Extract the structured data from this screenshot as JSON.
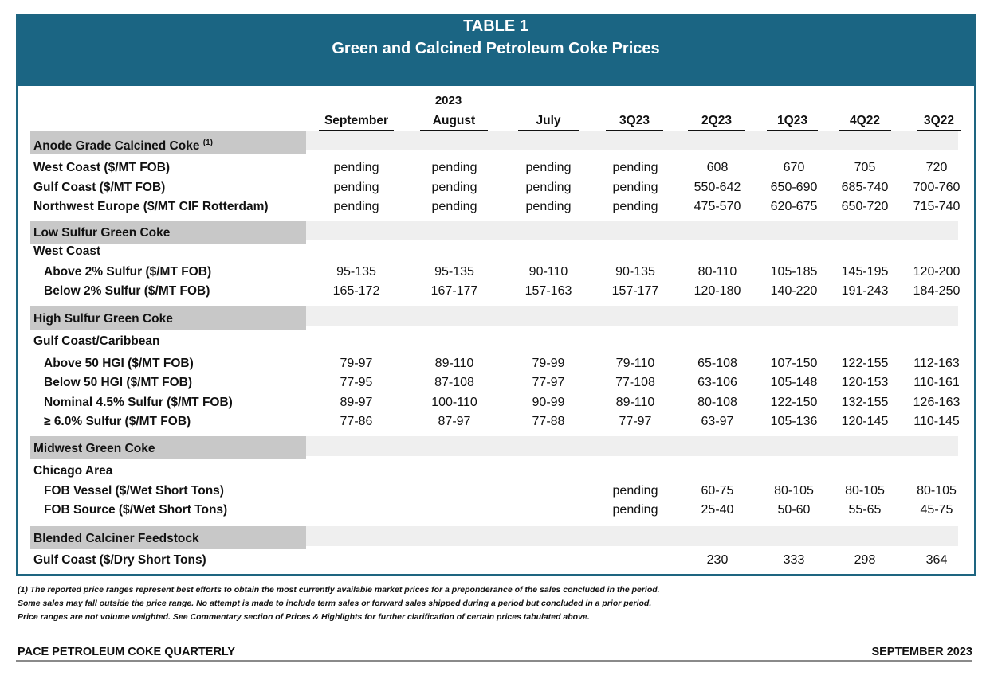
{
  "table": {
    "title": "TABLE 1",
    "subtitle": "Green and Calcined Petroleum Coke Prices",
    "year_label": "2023",
    "columns": [
      "September",
      "August",
      "July",
      "3Q23",
      "2Q23",
      "1Q23",
      "4Q22",
      "3Q22"
    ],
    "sections": [
      {
        "title": "Anode Grade Calcined Coke",
        "title_note": "(1)",
        "rows": [
          {
            "label": "West Coast ($/MT FOB)",
            "values": [
              "pending",
              "pending",
              "pending",
              "pending",
              "608",
              "670",
              "705",
              "720"
            ]
          },
          {
            "label": "Gulf Coast ($/MT FOB)",
            "values": [
              "pending",
              "pending",
              "pending",
              "pending",
              "550-642",
              "650-690",
              "685-740",
              "700-760"
            ]
          },
          {
            "label": "Northwest Europe ($/MT CIF Rotterdam)",
            "values": [
              "pending",
              "pending",
              "pending",
              "pending",
              "475-570",
              "620-675",
              "650-720",
              "715-740"
            ]
          }
        ]
      },
      {
        "title": "Low Sulfur Green Coke",
        "subheading": "West Coast",
        "rows": [
          {
            "label": "Above 2% Sulfur ($/MT FOB)",
            "values": [
              "95-135",
              "95-135",
              "90-110",
              "90-135",
              "80-110",
              "105-185",
              "145-195",
              "120-200"
            ]
          },
          {
            "label": "Below 2% Sulfur ($/MT FOB)",
            "values": [
              "165-172",
              "167-177",
              "157-163",
              "157-177",
              "120-180",
              "140-220",
              "191-243",
              "184-250"
            ]
          }
        ]
      },
      {
        "title": "High Sulfur Green Coke",
        "subheading": "Gulf Coast/Caribbean",
        "rows": [
          {
            "label": "Above 50 HGI ($/MT FOB)",
            "values": [
              "79-97",
              "89-110",
              "79-99",
              "79-110",
              "65-108",
              "107-150",
              "122-155",
              "112-163"
            ]
          },
          {
            "label": "Below 50 HGI ($/MT FOB)",
            "values": [
              "77-95",
              "87-108",
              "77-97",
              "77-108",
              "63-106",
              "105-148",
              "120-153",
              "110-161"
            ]
          },
          {
            "label": "Nominal 4.5% Sulfur ($/MT FOB)",
            "values": [
              "89-97",
              "100-110",
              "90-99",
              "89-110",
              "80-108",
              "122-150",
              "132-155",
              "126-163"
            ]
          },
          {
            "label": "≥ 6.0% Sulfur ($/MT FOB)",
            "values": [
              "77-86",
              "87-97",
              "77-88",
              "77-97",
              "63-97",
              "105-136",
              "120-145",
              "110-145"
            ]
          }
        ]
      },
      {
        "title": "Midwest Green Coke",
        "subheading": "Chicago Area",
        "rows": [
          {
            "label": "FOB Vessel ($/Wet Short Tons)",
            "values": [
              "",
              "",
              "",
              "pending",
              "60-75",
              "80-105",
              "80-105",
              "80-105"
            ]
          },
          {
            "label": "FOB Source ($/Wet Short Tons)",
            "values": [
              "",
              "",
              "",
              "pending",
              "25-40",
              "50-60",
              "55-65",
              "45-75"
            ]
          }
        ]
      },
      {
        "title": "Blended Calciner Feedstock",
        "rows": [
          {
            "label": "Gulf Coast ($/Dry Short Tons)",
            "values": [
              "",
              "",
              "",
              "",
              "230",
              "333",
              "298",
              "364"
            ]
          }
        ]
      }
    ]
  },
  "footnotes": [
    "(1) The reported price ranges represent best efforts to obtain the most currently available market prices for a preponderance of the sales concluded in the period.",
    "Some sales may fall outside the price range. No attempt is made to include term sales or forward sales shipped during a period but concluded in a prior period.",
    "Price ranges are not volume weighted. See Commentary section of Prices & Highlights for further clarification of certain prices tabulated above."
  ],
  "footer": {
    "publication": "PACE PETROLEUM COKE QUARTERLY",
    "date": "SEPTEMBER 2023"
  }
}
